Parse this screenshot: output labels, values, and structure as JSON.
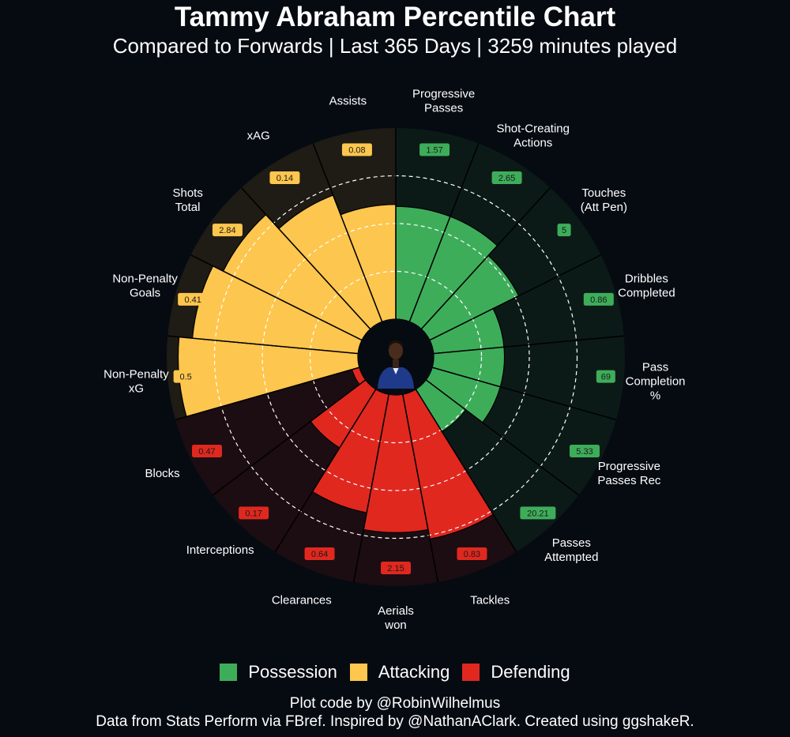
{
  "title": "Tammy Abraham Percentile Chart",
  "subtitle": "Compared to Forwards | Last 365 Days | 3259 minutes played",
  "legend": [
    {
      "label": "Possession",
      "color": "#3ead5a"
    },
    {
      "label": "Attacking",
      "color": "#fdc64e"
    },
    {
      "label": "Defending",
      "color": "#e0281f"
    }
  ],
  "credits": {
    "line1": "Plot code by @RobinWilhelmus",
    "line2": "Data from Stats Perform via FBref. Inspired by @NathanAClark. Created using ggshakeR."
  },
  "chart_data": {
    "type": "polar-bar",
    "value_axis": "percentile",
    "ylim": [
      0,
      100
    ],
    "gridlines": [
      25,
      50,
      75
    ],
    "categories_order": "clockwise from top",
    "bars": [
      {
        "stat": "Progressive Passes",
        "group": "Possession",
        "per90": "1.57",
        "percentile": 59
      },
      {
        "stat": "Shot-Creating Actions",
        "group": "Possession",
        "per90": "2.65",
        "percentile": 59
      },
      {
        "stat": "Touches (Att Pen)",
        "group": "Possession",
        "per90": "5",
        "percentile": 52
      },
      {
        "stat": "Dribbles Completed",
        "group": "Possession",
        "per90": "0.86",
        "percentile": 37
      },
      {
        "stat": "Pass Completion %",
        "group": "Possession",
        "per90": "69",
        "percentile": 37
      },
      {
        "stat": "Progressive Passes Rec",
        "group": "Possession",
        "per90": "5.33",
        "percentile": 37
      },
      {
        "stat": "Passes Attempted",
        "group": "Possession",
        "per90": "20.21",
        "percentile": 26
      },
      {
        "stat": "Tackles",
        "group": "Defending",
        "per90": "0.83",
        "percentile": 77
      },
      {
        "stat": "Aerials won",
        "group": "Defending",
        "per90": "2.15",
        "percentile": 72
      },
      {
        "stat": "Clearances",
        "group": "Defending",
        "per90": "0.64",
        "percentile": 63
      },
      {
        "stat": "Interceptions",
        "group": "Defending",
        "per90": "0.17",
        "percentile": 36
      },
      {
        "stat": "Blocks",
        "group": "Defending",
        "per90": "0.47",
        "percentile": 4
      },
      {
        "stat": "Non-Penalty xG",
        "group": "Attacking",
        "per90": "0.5",
        "percentile": 94
      },
      {
        "stat": "Non-Penalty Goals",
        "group": "Attacking",
        "per90": "0.41",
        "percentile": 87
      },
      {
        "stat": "Shots Total",
        "group": "Attacking",
        "per90": "2.84",
        "percentile": 81
      },
      {
        "stat": "xAG",
        "group": "Attacking",
        "per90": "0.14",
        "percentile": 71
      },
      {
        "stat": "Assists",
        "group": "Attacking",
        "per90": "0.08",
        "percentile": 60
      }
    ],
    "label_lines": [
      [
        "Progressive",
        "Passes"
      ],
      [
        "Shot-Creating",
        "Actions"
      ],
      [
        "Touches",
        "(Att Pen)"
      ],
      [
        "Dribbles",
        "Completed"
      ],
      [
        "Pass",
        "Completion",
        "%"
      ],
      [
        "Progressive",
        "Passes Rec"
      ],
      [
        "Passes",
        "Attempted"
      ],
      [
        "Tackles"
      ],
      [
        "Aerials",
        "won"
      ],
      [
        "Clearances"
      ],
      [
        "Interceptions"
      ],
      [
        "Blocks"
      ],
      [
        "Non-Penalty",
        "xG"
      ],
      [
        "Non-Penalty",
        "Goals"
      ],
      [
        "Shots",
        "Total"
      ],
      [
        "xAG"
      ],
      [
        "Assists"
      ]
    ],
    "group_backgrounds": {
      "Possession": "#0c1a17",
      "Attacking": "#1f1b15",
      "Defending": "#1c0d12"
    }
  }
}
